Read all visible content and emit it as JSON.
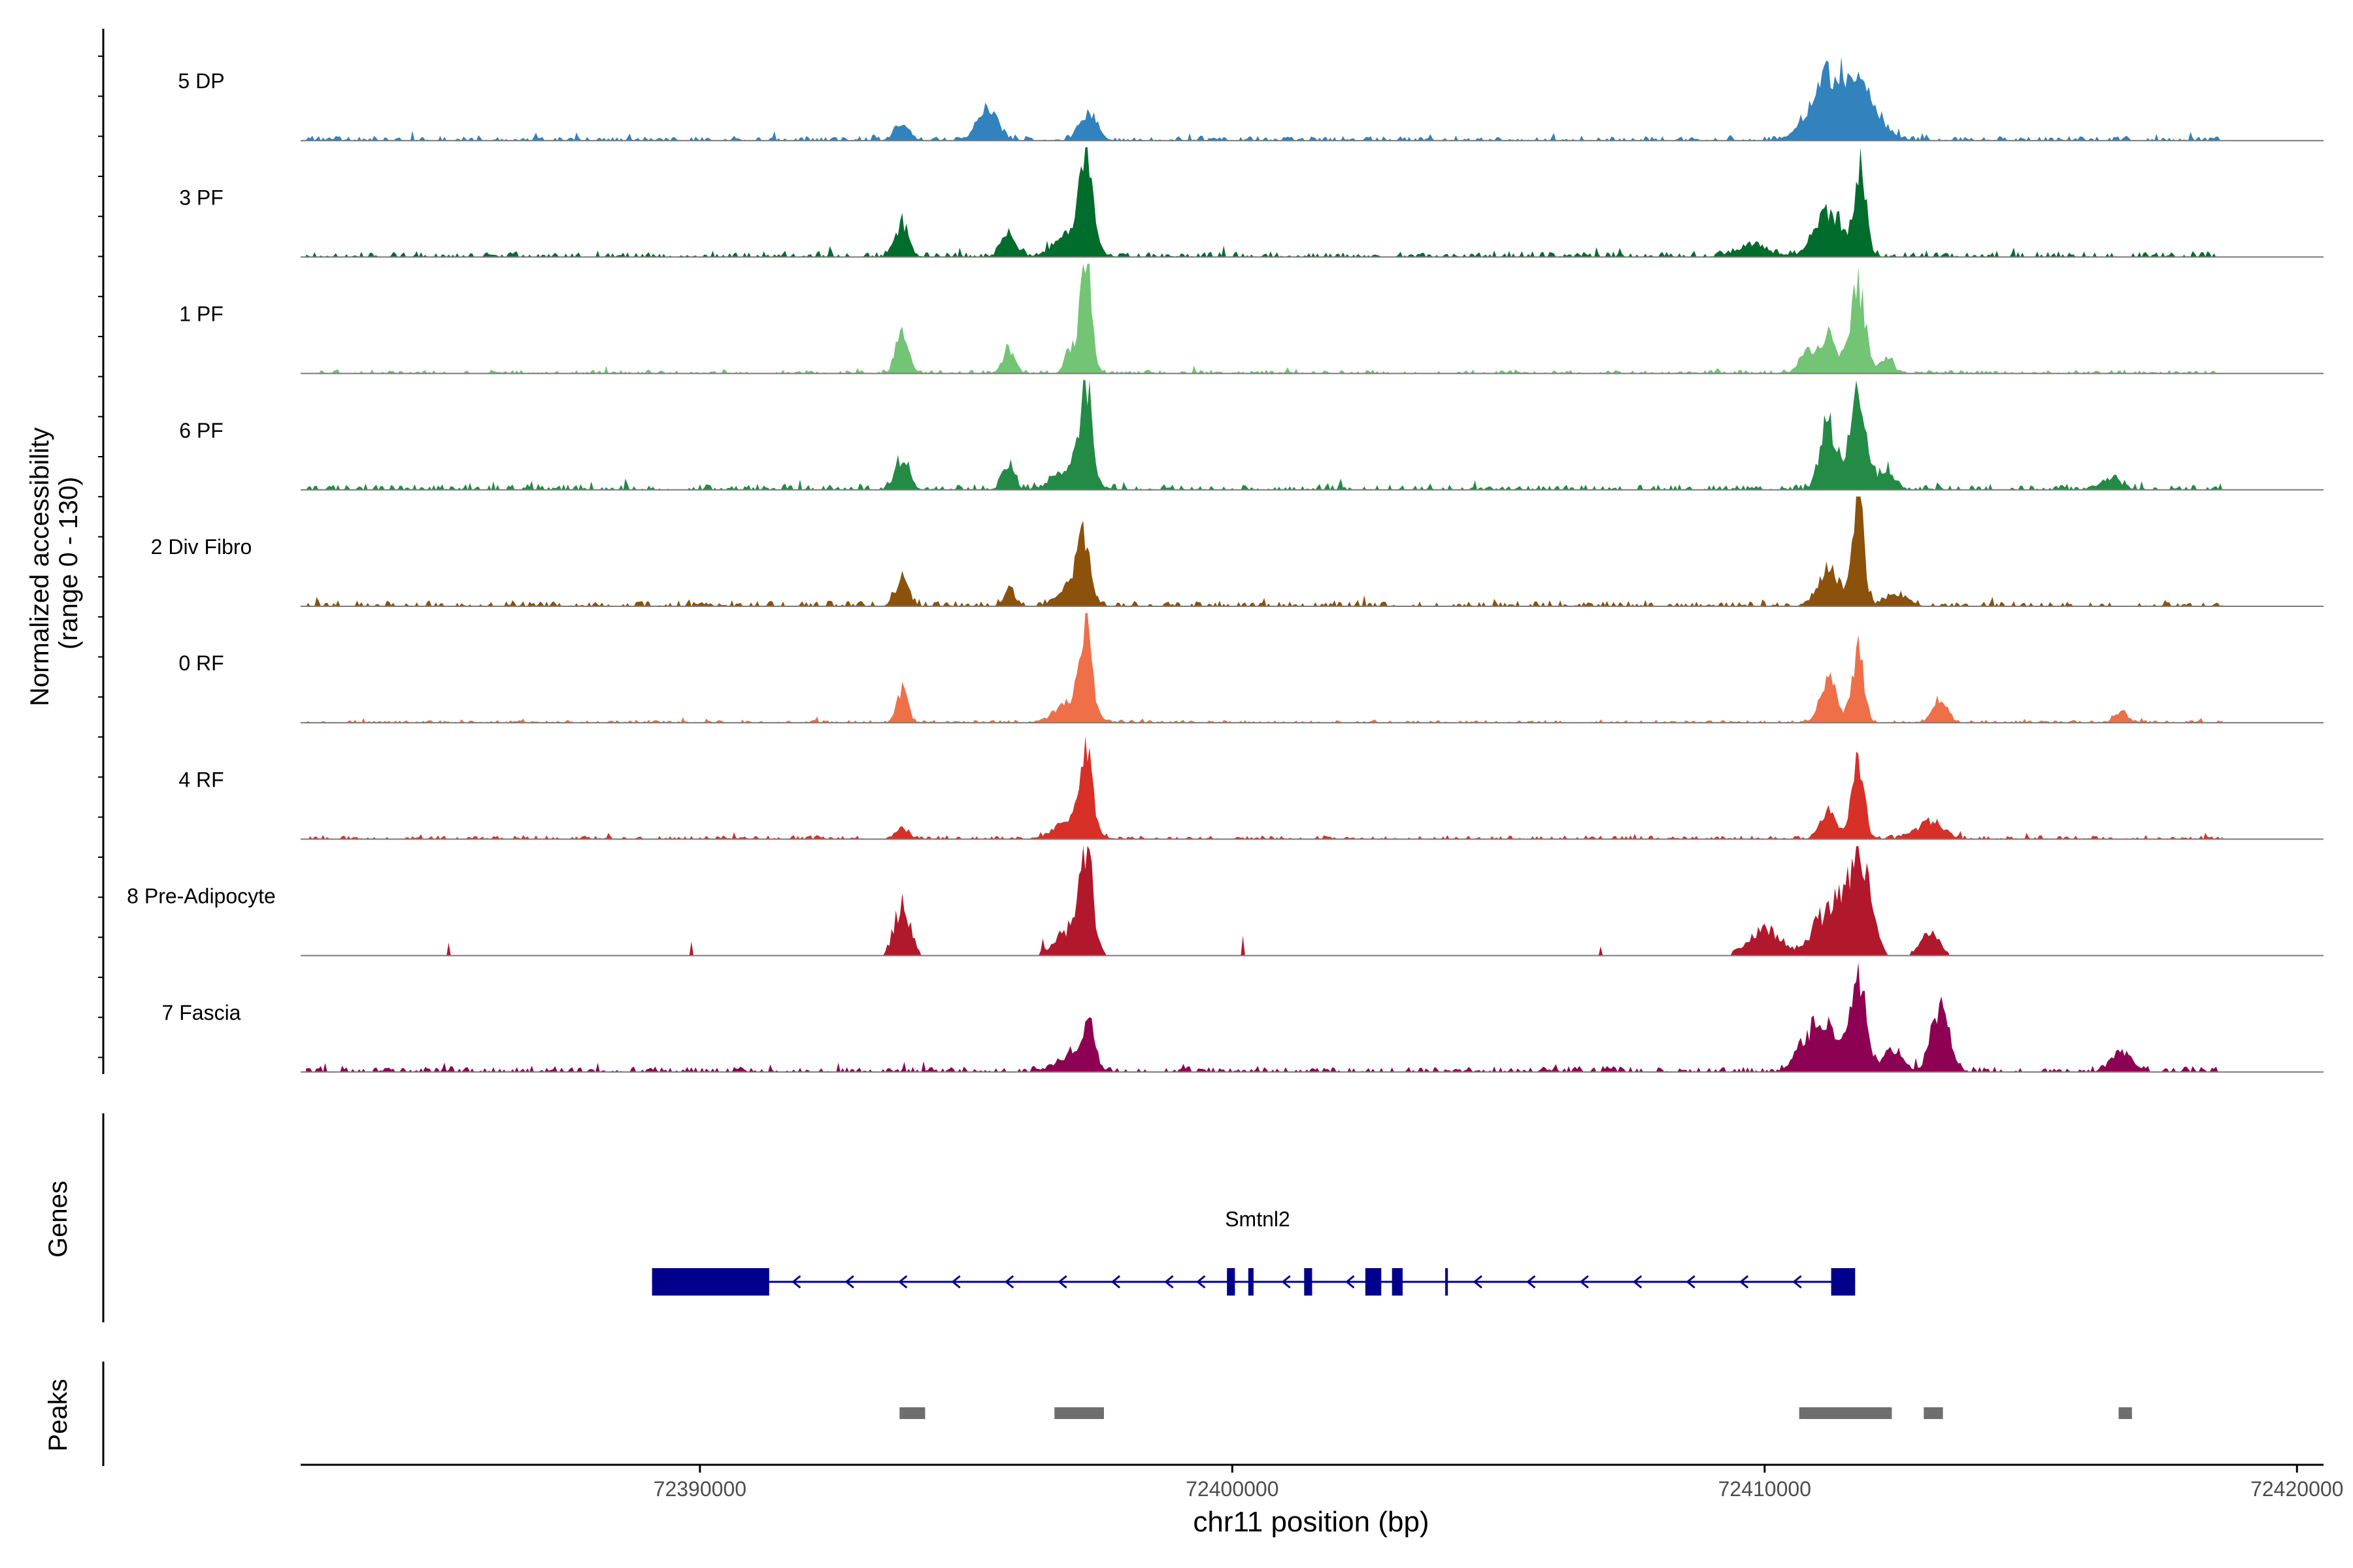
{
  "chart_data": {
    "type": "area",
    "title": "",
    "y_axis_title_line1": "Normalized accessibility",
    "y_axis_title_line2": "(range 0 - 130)",
    "ylim": [
      0,
      130
    ],
    "xlabel": "chr11 position (bp)",
    "xlim": [
      72382500,
      72420500
    ],
    "x_ticks": [
      72390000,
      72400000,
      72410000,
      72420000
    ],
    "x_tick_labels": [
      "72390000",
      "72400000",
      "72410000",
      "72420000"
    ],
    "data_range": [
      72382600,
      72418600
    ],
    "tracks": [
      {
        "name": "5 DP",
        "color": "#3182BD",
        "noise": 5,
        "peaks": [
          [
            72393800,
            130,
            18
          ],
          [
            72395400,
            200,
            28
          ],
          [
            72397300,
            160,
            24
          ],
          [
            72411100,
            250,
            30
          ],
          [
            72411300,
            450,
            22
          ],
          [
            72411750,
            350,
            40
          ]
        ]
      },
      {
        "name": "3 PF",
        "color": "#006D2C",
        "noise": 6,
        "peaks": [
          [
            72393800,
            120,
            32
          ],
          [
            72395800,
            140,
            20
          ],
          [
            72397000,
            300,
            22
          ],
          [
            72397250,
            120,
            82
          ],
          [
            72409800,
            350,
            8
          ],
          [
            72411200,
            250,
            42
          ],
          [
            72411800,
            110,
            80
          ]
        ]
      },
      {
        "name": "1 PF",
        "color": "#74C476",
        "noise": 4,
        "peaks": [
          [
            72393800,
            120,
            35
          ],
          [
            72395800,
            120,
            20
          ],
          [
            72396950,
            100,
            20
          ],
          [
            72397250,
            110,
            98
          ],
          [
            72410800,
            150,
            20
          ],
          [
            72411200,
            150,
            35
          ],
          [
            72411750,
            140,
            80
          ],
          [
            72412300,
            120,
            15
          ]
        ]
      },
      {
        "name": "6 PF",
        "color": "#238B45",
        "noise": 6,
        "peaks": [
          [
            72393800,
            130,
            28
          ],
          [
            72395800,
            110,
            22
          ],
          [
            72397000,
            300,
            22
          ],
          [
            72397250,
            110,
            85
          ],
          [
            72411200,
            150,
            60
          ],
          [
            72411750,
            150,
            90
          ],
          [
            72412300,
            150,
            18
          ],
          [
            72416500,
            200,
            10
          ]
        ]
      },
      {
        "name": "2 Div Fibro",
        "color": "#8C510A",
        "noise": 6,
        "peaks": [
          [
            72393800,
            130,
            22
          ],
          [
            72395800,
            100,
            15
          ],
          [
            72397000,
            250,
            18
          ],
          [
            72397200,
            120,
            55
          ],
          [
            72411200,
            200,
            35
          ],
          [
            72411750,
            110,
            100
          ],
          [
            72412500,
            200,
            10
          ]
        ]
      },
      {
        "name": "0 RF",
        "color": "#EF6F48",
        "noise": 3,
        "peaks": [
          [
            72393800,
            100,
            30
          ],
          [
            72397000,
            300,
            18
          ],
          [
            72397250,
            110,
            85
          ],
          [
            72411200,
            150,
            40
          ],
          [
            72411750,
            110,
            65
          ],
          [
            72413300,
            130,
            22
          ],
          [
            72416700,
            120,
            10
          ]
        ]
      },
      {
        "name": "4 RF",
        "color": "#D73027",
        "noise": 4,
        "peaks": [
          [
            72393800,
            120,
            10
          ],
          [
            72397000,
            300,
            20
          ],
          [
            72397250,
            120,
            65
          ],
          [
            72411200,
            150,
            25
          ],
          [
            72411750,
            110,
            80
          ],
          [
            72413100,
            250,
            15
          ]
        ]
      },
      {
        "name": "8 Pre-Adipocyte",
        "color": "#B2182B",
        "noise": 0,
        "peaks": [
          [
            72393800,
            150,
            45
          ],
          [
            72397000,
            300,
            25
          ],
          [
            72397250,
            110,
            90
          ],
          [
            72410000,
            300,
            25
          ],
          [
            72411250,
            300,
            45
          ],
          [
            72411800,
            200,
            80
          ],
          [
            72413100,
            180,
            20
          ]
        ]
      },
      {
        "name": "7 Fascia",
        "color": "#8E0152",
        "noise": 6,
        "peaks": [
          [
            72397000,
            300,
            15
          ],
          [
            72397300,
            110,
            40
          ],
          [
            72410800,
            200,
            30
          ],
          [
            72411200,
            200,
            35
          ],
          [
            72411750,
            150,
            90
          ],
          [
            72412400,
            180,
            20
          ],
          [
            72413300,
            170,
            60
          ],
          [
            72416700,
            200,
            18
          ]
        ]
      }
    ],
    "genes": {
      "label": "Genes",
      "gene_name": "Smtnl2",
      "strand": "-",
      "color": "#00008B",
      "tx_start": 72389100,
      "tx_end": 72411700,
      "exons": [
        [
          72389100,
          72391300
        ],
        [
          72399900,
          72400050
        ],
        [
          72400300,
          72400400
        ],
        [
          72401350,
          72401500
        ],
        [
          72402500,
          72402800
        ],
        [
          72403000,
          72403200
        ],
        [
          72404000,
          72404050
        ],
        [
          72411250,
          72411700
        ]
      ]
    },
    "peaks_track": {
      "label": "Peaks",
      "color": "#6E6E6E",
      "regions": [
        [
          72393750,
          72394230
        ],
        [
          72396660,
          72397590
        ],
        [
          72410650,
          72412390
        ],
        [
          72412990,
          72413350
        ],
        [
          72416650,
          72416900
        ]
      ]
    }
  }
}
